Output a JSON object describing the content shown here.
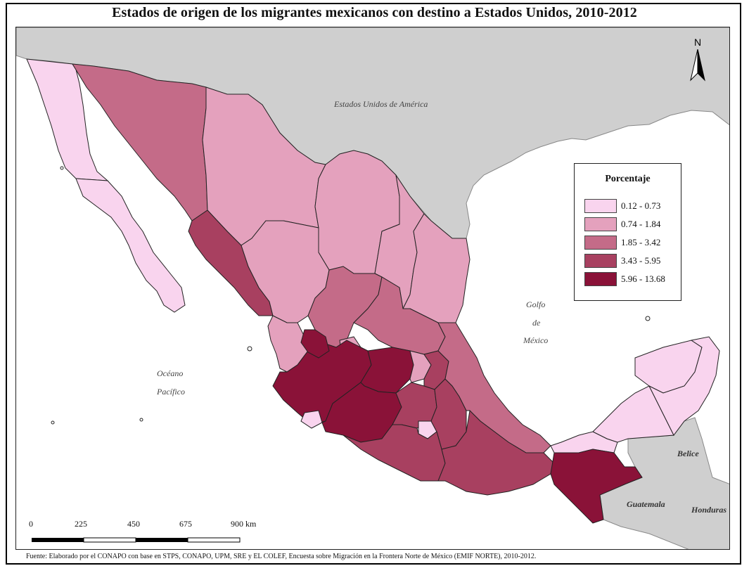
{
  "title": "Estados de origen de los migrantes mexicanos con destino a Estados Unidos, 2010-2012",
  "labels": {
    "usa": "Estados Unidos de América",
    "gulf_1": "Golfo",
    "gulf_2": "de",
    "gulf_3": "México",
    "ocean_1": "Océano",
    "ocean_2": "Pacífico",
    "belize": "Belice",
    "guatemala": "Guatemala",
    "honduras": "Honduras"
  },
  "legend": {
    "title": "Porcentaje",
    "items": [
      {
        "label": "0.12 - 0.73",
        "color": "#f9d4ee"
      },
      {
        "label": "0.74 - 1.84",
        "color": "#e4a1bd"
      },
      {
        "label": "1.85 - 3.42",
        "color": "#c46b88"
      },
      {
        "label": "3.43 - 5.95",
        "color": "#a84060"
      },
      {
        "label": "5.96 - 13.68",
        "color": "#8a1238"
      }
    ]
  },
  "scale_bar": {
    "ticks": [
      "0",
      "225",
      "450",
      "675",
      "900 km"
    ]
  },
  "north": "N",
  "source": "Fuente: Elaborado por el CONAPO con base en STPS, CONAPO, UPM, SRE y EL COLEF, Encuesta sobre Migración en la Frontera Norte de México (EMIF NORTE), 2010-2012.",
  "colors": {
    "land_foreign": "#cfcfcf",
    "water": "#ffffff",
    "border": "#222222"
  }
}
